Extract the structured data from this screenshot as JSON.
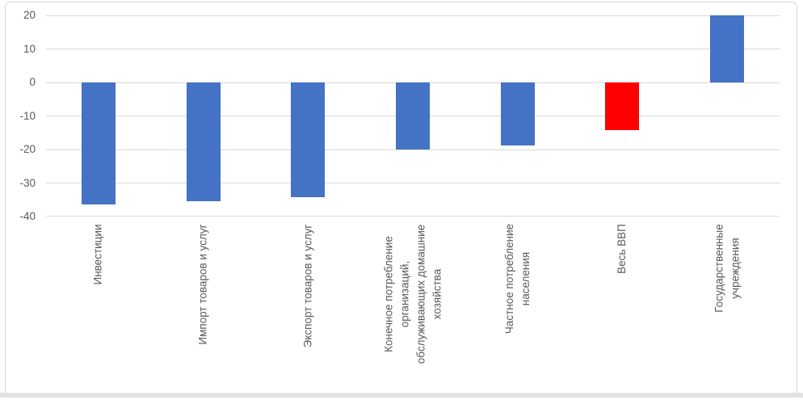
{
  "chart_data": {
    "type": "bar",
    "title": "",
    "xlabel": "",
    "ylabel": "",
    "categories": [
      "Инвестиции",
      "Импорт товаров и услуг",
      "Экспорт товаров и услуг",
      "Конечное потребление организаций, обслуживающих домашние хозяйства",
      "Частное потребление населения",
      "Весь ВВП",
      "Государственные учреждения"
    ],
    "category_label_lines": [
      [
        "Инвестиции"
      ],
      [
        "Импорт товаров и услуг"
      ],
      [
        "Экспорт товаров и услуг"
      ],
      [
        "Конечное потребление",
        "организаций,",
        "обслуживающих домашние",
        "хозяйства"
      ],
      [
        "Частное потребление",
        "населения"
      ],
      [
        "Весь ВВП"
      ],
      [
        "Государственные",
        "учреждения"
      ]
    ],
    "values": [
      -36.5,
      -35.4,
      -34.2,
      -19.9,
      -18.9,
      -14.1,
      20
    ],
    "bar_colors": [
      "#4472C4",
      "#4472C4",
      "#4472C4",
      "#4472C4",
      "#4472C4",
      "#FF0000",
      "#4472C4"
    ],
    "y_ticks": [
      20,
      10,
      0,
      -10,
      -20,
      -30,
      -40
    ],
    "ylim": [
      -40,
      20
    ],
    "grid": true,
    "legend": "none",
    "colors": {
      "bar_default": "#4472C4",
      "bar_highlight": "#FF0000",
      "gridline": "#D9D9D9",
      "axis_label": "#595959",
      "frame_border": "#D9D9D9"
    }
  }
}
